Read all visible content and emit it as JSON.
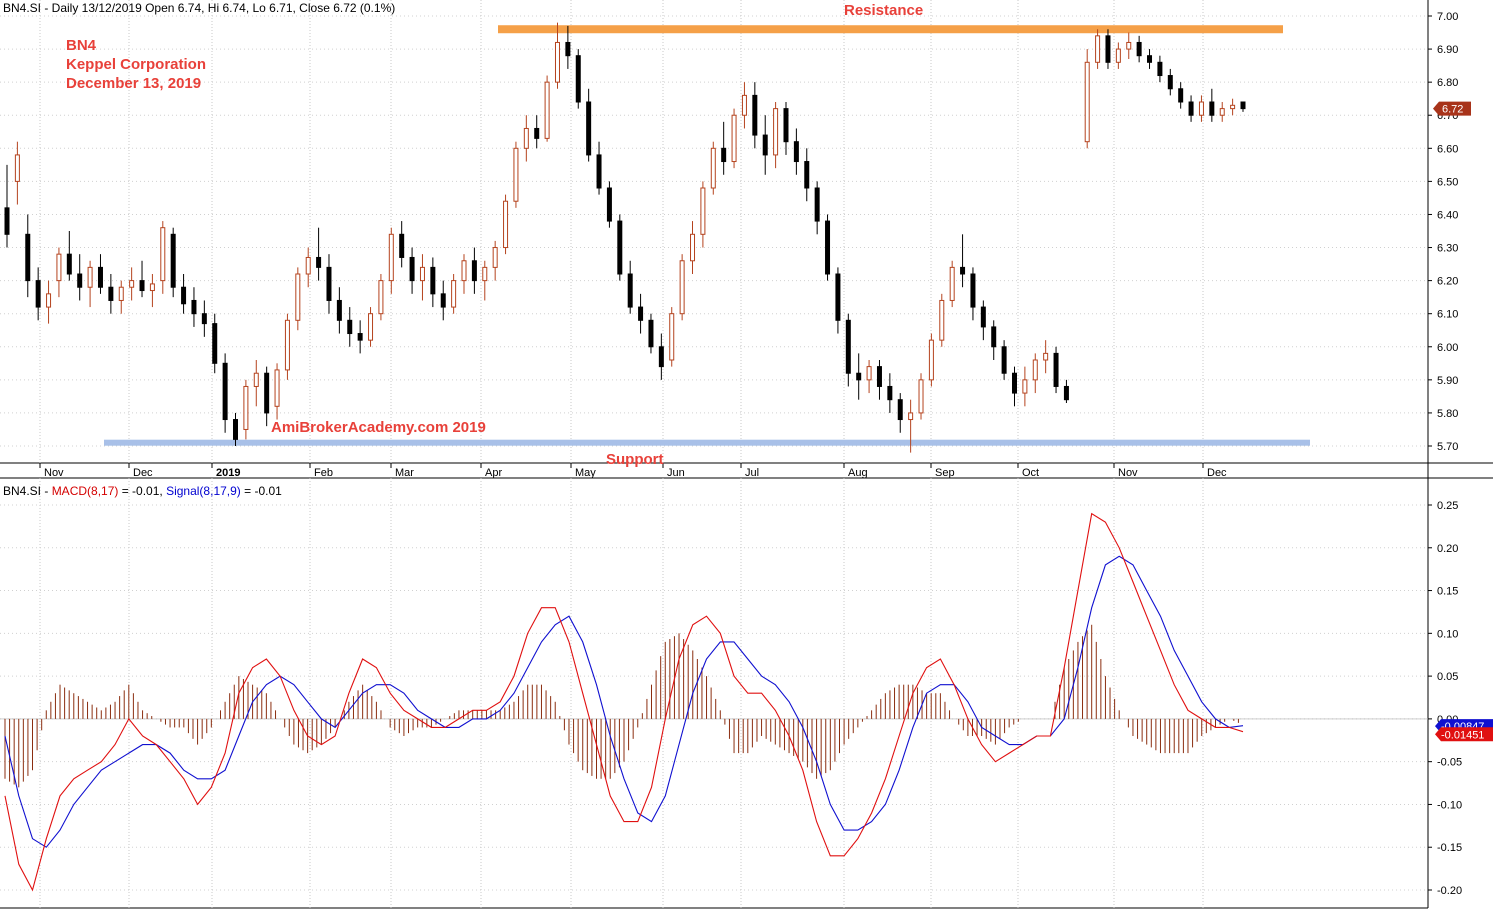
{
  "header": {
    "price": "BN4.SI - Daily 13/12/2019 Open 6.74, Hi 6.74, Lo 6.71, Close 6.72 (0.1%)",
    "macd_prefix": "BN4.SI - ",
    "macd_label": "MACD(8,17)",
    "macd_value": " = -0.01, ",
    "signal_label": "Signal(8,17,9)",
    "signal_value": " = -0.01"
  },
  "company": {
    "ticker": "BN4",
    "name": "Keppel Corporation",
    "date": "December 13, 2019"
  },
  "annotations": {
    "resistance": "Resistance",
    "support": "Support",
    "watermark": "AmiBrokerAcademy.com  2019"
  },
  "colors": {
    "up_candle": "#b5431e",
    "down_candle": "#000000",
    "macd": "#e01010",
    "signal": "#1010d0",
    "histogram": "#8b2e10",
    "resistance_band": "#f5a048",
    "support_band": "#a8c0e8",
    "annotation": "#e8413a"
  },
  "chart_data": [
    {
      "type": "candlestick",
      "ylim": [
        5.65,
        7.03
      ],
      "ticks": [
        "7.00",
        "6.90",
        "6.80",
        "6.70",
        "6.60",
        "6.50",
        "6.40",
        "6.30",
        "6.20",
        "6.10",
        "6.00",
        "5.90",
        "5.80",
        "5.70"
      ],
      "months": [
        "Nov",
        "Dec",
        "2019",
        "Feb",
        "Mar",
        "Apr",
        "May",
        "Jun",
        "Jul",
        "Aug",
        "Sep",
        "Oct",
        "Nov",
        "Dec"
      ],
      "last_price_label": "6.72",
      "resistance_level": 6.96,
      "support_level": 5.71,
      "series": [
        {
          "name": "OHLC",
          "values": [
            [
              6.42,
              6.55,
              6.3,
              6.34
            ],
            [
              6.5,
              6.62,
              6.43,
              6.58
            ],
            [
              6.34,
              6.4,
              6.15,
              6.2
            ],
            [
              6.2,
              6.24,
              6.08,
              6.12
            ],
            [
              6.12,
              6.2,
              6.07,
              6.16
            ],
            [
              6.2,
              6.3,
              6.15,
              6.28
            ],
            [
              6.28,
              6.35,
              6.2,
              6.22
            ],
            [
              6.22,
              6.28,
              6.14,
              6.18
            ],
            [
              6.18,
              6.26,
              6.12,
              6.24
            ],
            [
              6.24,
              6.28,
              6.16,
              6.18
            ],
            [
              6.18,
              6.22,
              6.1,
              6.14
            ],
            [
              6.14,
              6.2,
              6.1,
              6.18
            ],
            [
              6.18,
              6.24,
              6.14,
              6.2
            ],
            [
              6.2,
              6.26,
              6.15,
              6.17
            ],
            [
              6.17,
              6.22,
              6.12,
              6.19
            ],
            [
              6.2,
              6.38,
              6.16,
              6.36
            ],
            [
              6.34,
              6.36,
              6.15,
              6.18
            ],
            [
              6.18,
              6.22,
              6.1,
              6.13
            ],
            [
              6.14,
              6.18,
              6.06,
              6.1
            ],
            [
              6.1,
              6.14,
              6.03,
              6.07
            ],
            [
              6.07,
              6.1,
              5.92,
              5.95
            ],
            [
              5.95,
              5.98,
              5.74,
              5.78
            ],
            [
              5.78,
              5.8,
              5.7,
              5.72
            ],
            [
              5.75,
              5.9,
              5.72,
              5.88
            ],
            [
              5.88,
              5.96,
              5.82,
              5.92
            ],
            [
              5.92,
              5.94,
              5.76,
              5.8
            ],
            [
              5.82,
              5.95,
              5.78,
              5.93
            ],
            [
              5.93,
              6.1,
              5.9,
              6.08
            ],
            [
              6.08,
              6.24,
              6.05,
              6.22
            ],
            [
              6.22,
              6.3,
              6.18,
              6.27
            ],
            [
              6.27,
              6.36,
              6.2,
              6.24
            ],
            [
              6.24,
              6.28,
              6.1,
              6.14
            ],
            [
              6.14,
              6.18,
              6.04,
              6.08
            ],
            [
              6.08,
              6.12,
              6.0,
              6.04
            ],
            [
              6.04,
              6.08,
              5.98,
              6.02
            ],
            [
              6.02,
              6.12,
              6.0,
              6.1
            ],
            [
              6.1,
              6.22,
              6.08,
              6.2
            ],
            [
              6.2,
              6.36,
              6.16,
              6.34
            ],
            [
              6.34,
              6.38,
              6.24,
              6.27
            ],
            [
              6.27,
              6.3,
              6.16,
              6.2
            ],
            [
              6.2,
              6.28,
              6.14,
              6.24
            ],
            [
              6.24,
              6.27,
              6.12,
              6.16
            ],
            [
              6.16,
              6.2,
              6.08,
              6.12
            ],
            [
              6.12,
              6.22,
              6.1,
              6.2
            ],
            [
              6.2,
              6.28,
              6.16,
              6.26
            ],
            [
              6.26,
              6.3,
              6.16,
              6.2
            ],
            [
              6.2,
              6.26,
              6.14,
              6.24
            ],
            [
              6.24,
              6.32,
              6.2,
              6.3
            ],
            [
              6.3,
              6.46,
              6.28,
              6.44
            ],
            [
              6.44,
              6.62,
              6.42,
              6.6
            ],
            [
              6.6,
              6.7,
              6.56,
              6.66
            ],
            [
              6.66,
              6.7,
              6.6,
              6.63
            ],
            [
              6.63,
              6.82,
              6.62,
              6.8
            ],
            [
              6.8,
              6.98,
              6.78,
              6.92
            ],
            [
              6.92,
              6.97,
              6.84,
              6.88
            ],
            [
              6.88,
              6.9,
              6.72,
              6.74
            ],
            [
              6.74,
              6.78,
              6.56,
              6.58
            ],
            [
              6.58,
              6.62,
              6.46,
              6.48
            ],
            [
              6.48,
              6.5,
              6.36,
              6.38
            ],
            [
              6.38,
              6.4,
              6.2,
              6.22
            ],
            [
              6.22,
              6.26,
              6.1,
              6.12
            ],
            [
              6.12,
              6.16,
              6.04,
              6.08
            ],
            [
              6.08,
              6.1,
              5.98,
              6.0
            ],
            [
              6.0,
              6.04,
              5.9,
              5.94
            ],
            [
              5.96,
              6.12,
              5.94,
              6.1
            ],
            [
              6.1,
              6.28,
              6.08,
              6.26
            ],
            [
              6.26,
              6.38,
              6.22,
              6.34
            ],
            [
              6.34,
              6.5,
              6.3,
              6.48
            ],
            [
              6.48,
              6.62,
              6.46,
              6.6
            ],
            [
              6.6,
              6.68,
              6.52,
              6.56
            ],
            [
              6.56,
              6.72,
              6.54,
              6.7
            ],
            [
              6.7,
              6.8,
              6.66,
              6.76
            ],
            [
              6.76,
              6.8,
              6.6,
              6.64
            ],
            [
              6.64,
              6.7,
              6.52,
              6.58
            ],
            [
              6.58,
              6.74,
              6.54,
              6.72
            ],
            [
              6.72,
              6.74,
              6.58,
              6.62
            ],
            [
              6.62,
              6.66,
              6.52,
              6.56
            ],
            [
              6.56,
              6.6,
              6.44,
              6.48
            ],
            [
              6.48,
              6.5,
              6.34,
              6.38
            ],
            [
              6.38,
              6.4,
              6.2,
              6.22
            ],
            [
              6.22,
              6.24,
              6.04,
              6.08
            ],
            [
              6.08,
              6.1,
              5.88,
              5.92
            ],
            [
              5.92,
              5.98,
              5.84,
              5.9
            ],
            [
              5.9,
              5.96,
              5.86,
              5.94
            ],
            [
              5.94,
              5.96,
              5.84,
              5.88
            ],
            [
              5.88,
              5.92,
              5.8,
              5.84
            ],
            [
              5.84,
              5.86,
              5.74,
              5.78
            ],
            [
              5.78,
              5.84,
              5.68,
              5.8
            ],
            [
              5.8,
              5.92,
              5.78,
              5.9
            ],
            [
              5.9,
              6.04,
              5.88,
              6.02
            ],
            [
              6.02,
              6.16,
              6.0,
              6.14
            ],
            [
              6.14,
              6.26,
              6.12,
              6.24
            ],
            [
              6.24,
              6.34,
              6.18,
              6.22
            ],
            [
              6.22,
              6.24,
              6.08,
              6.12
            ],
            [
              6.12,
              6.14,
              6.02,
              6.06
            ],
            [
              6.06,
              6.08,
              5.96,
              6.0
            ],
            [
              6.0,
              6.02,
              5.9,
              5.92
            ],
            [
              5.92,
              5.94,
              5.82,
              5.86
            ],
            [
              5.86,
              5.94,
              5.82,
              5.9
            ],
            [
              5.9,
              5.98,
              5.86,
              5.96
            ],
            [
              5.96,
              6.02,
              5.92,
              5.98
            ],
            [
              5.98,
              6.0,
              5.86,
              5.88
            ],
            [
              5.88,
              5.9,
              5.83,
              5.84
            ],
            [
              6.62,
              6.9,
              6.6,
              6.86
            ],
            [
              6.86,
              6.96,
              6.84,
              6.94
            ],
            [
              6.94,
              6.96,
              6.84,
              6.86
            ],
            [
              6.86,
              6.92,
              6.84,
              6.9
            ],
            [
              6.9,
              6.95,
              6.87,
              6.92
            ],
            [
              6.92,
              6.94,
              6.86,
              6.88
            ],
            [
              6.88,
              6.9,
              6.84,
              6.86
            ],
            [
              6.86,
              6.88,
              6.8,
              6.82
            ],
            [
              6.82,
              6.84,
              6.76,
              6.78
            ],
            [
              6.78,
              6.8,
              6.72,
              6.74
            ],
            [
              6.74,
              6.76,
              6.68,
              6.7
            ],
            [
              6.7,
              6.76,
              6.68,
              6.74
            ],
            [
              6.74,
              6.78,
              6.68,
              6.7
            ],
            [
              6.7,
              6.74,
              6.68,
              6.72
            ],
            [
              6.72,
              6.75,
              6.7,
              6.73
            ],
            [
              6.74,
              6.74,
              6.71,
              6.72
            ]
          ]
        }
      ]
    },
    {
      "type": "line",
      "ylim": [
        -0.205,
        0.26
      ],
      "ticks": [
        "0.25",
        "0.20",
        "0.15",
        "0.10",
        "0.05",
        "0.00",
        "-0.05",
        "-0.10",
        "-0.15",
        "-0.20"
      ],
      "macd_last_label": "-0.01451",
      "signal_last_label": "-0.00847",
      "series": [
        {
          "name": "MACD(8,17)",
          "values": [
            -0.09,
            -0.17,
            -0.2,
            -0.14,
            -0.09,
            -0.07,
            -0.06,
            -0.05,
            -0.03,
            0.0,
            -0.02,
            -0.03,
            -0.05,
            -0.07,
            -0.1,
            -0.08,
            -0.04,
            0.03,
            0.06,
            0.07,
            0.05,
            0.01,
            -0.02,
            -0.03,
            -0.02,
            0.03,
            0.07,
            0.06,
            0.03,
            0.01,
            0.0,
            -0.01,
            -0.01,
            0.0,
            0.01,
            0.01,
            0.02,
            0.05,
            0.1,
            0.13,
            0.13,
            0.09,
            0.03,
            -0.03,
            -0.09,
            -0.12,
            -0.12,
            -0.08,
            0.0,
            0.07,
            0.11,
            0.12,
            0.1,
            0.05,
            0.03,
            0.03,
            0.01,
            -0.02,
            -0.06,
            -0.12,
            -0.16,
            -0.16,
            -0.14,
            -0.11,
            -0.07,
            -0.02,
            0.03,
            0.06,
            0.07,
            0.04,
            0.0,
            -0.03,
            -0.05,
            -0.04,
            -0.03,
            -0.02,
            -0.02,
            0.06,
            0.15,
            0.24,
            0.23,
            0.2,
            0.16,
            0.12,
            0.08,
            0.04,
            0.01,
            0.0,
            -0.01,
            -0.01,
            -0.015
          ]
        },
        {
          "name": "Signal(8,17,9)",
          "values": [
            -0.02,
            -0.09,
            -0.14,
            -0.15,
            -0.13,
            -0.1,
            -0.08,
            -0.06,
            -0.05,
            -0.04,
            -0.03,
            -0.03,
            -0.04,
            -0.06,
            -0.07,
            -0.07,
            -0.06,
            -0.02,
            0.02,
            0.04,
            0.05,
            0.04,
            0.02,
            0.0,
            -0.01,
            0.01,
            0.03,
            0.04,
            0.04,
            0.03,
            0.01,
            0.0,
            -0.01,
            -0.01,
            0.0,
            0.0,
            0.01,
            0.03,
            0.06,
            0.09,
            0.11,
            0.12,
            0.09,
            0.04,
            -0.02,
            -0.07,
            -0.11,
            -0.12,
            -0.09,
            -0.03,
            0.03,
            0.07,
            0.09,
            0.09,
            0.07,
            0.05,
            0.04,
            0.02,
            -0.01,
            -0.05,
            -0.1,
            -0.13,
            -0.13,
            -0.12,
            -0.1,
            -0.06,
            -0.01,
            0.03,
            0.04,
            0.04,
            0.02,
            -0.01,
            -0.02,
            -0.03,
            -0.03,
            -0.02,
            -0.02,
            0.0,
            0.06,
            0.13,
            0.18,
            0.19,
            0.18,
            0.15,
            0.12,
            0.08,
            0.05,
            0.02,
            0.0,
            -0.01,
            -0.008
          ]
        }
      ]
    }
  ]
}
